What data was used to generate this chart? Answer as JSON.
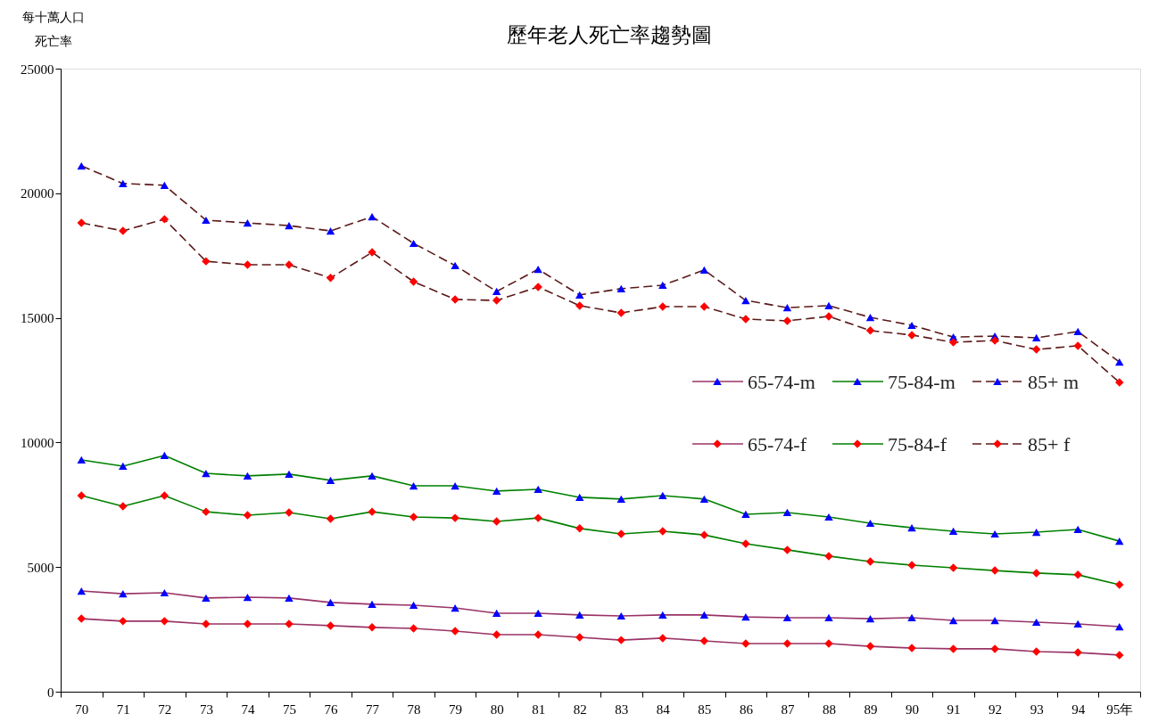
{
  "chart_data": {
    "type": "line",
    "title": "歷年老人死亡率趨勢圖",
    "ylabel": "每十萬人口",
    "annotations": [
      "死亡率"
    ],
    "categories": [
      "70",
      "71",
      "72",
      "73",
      "74",
      "75",
      "76",
      "77",
      "78",
      "79",
      "80",
      "81",
      "82",
      "83",
      "84",
      "85",
      "86",
      "87",
      "88",
      "89",
      "90",
      "91",
      "92",
      "93",
      "94",
      "95年"
    ],
    "ylim": [
      0,
      25000
    ],
    "yticks": [
      0,
      5000,
      10000,
      15000,
      20000,
      25000
    ],
    "grid": false,
    "legend": "right",
    "series": [
      {
        "name": "65-74-m",
        "color": "#993366",
        "marker": "triangle",
        "line_style": "solid",
        "values": [
          4040,
          3930,
          3970,
          3760,
          3790,
          3760,
          3580,
          3510,
          3470,
          3360,
          3150,
          3150,
          3080,
          3040,
          3080,
          3080,
          3000,
          2970,
          2970,
          2930,
          2970,
          2860,
          2860,
          2790,
          2720,
          2610
        ]
      },
      {
        "name": "75-84-m",
        "color": "#008000",
        "marker": "triangle",
        "line_style": "solid",
        "values": [
          9300,
          9050,
          9480,
          8760,
          8660,
          8730,
          8480,
          8660,
          8260,
          8260,
          8050,
          8120,
          7800,
          7730,
          7870,
          7730,
          7120,
          7190,
          7010,
          6760,
          6580,
          6440,
          6330,
          6400,
          6510,
          6040
        ]
      },
      {
        "name": "85+ m",
        "color": "#5c1a1a",
        "marker": "triangle",
        "line_style": "dashed",
        "values": [
          21100,
          20390,
          20320,
          18920,
          18810,
          18700,
          18490,
          19060,
          17990,
          17100,
          16060,
          16950,
          15920,
          16170,
          16310,
          16920,
          15700,
          15410,
          15490,
          15020,
          14700,
          14230,
          14270,
          14200,
          14450,
          13230
        ]
      },
      {
        "name": "65-74-f",
        "color": "#993366",
        "marker": "diamond",
        "line_style": "solid",
        "values": [
          2930,
          2830,
          2830,
          2720,
          2720,
          2720,
          2650,
          2580,
          2540,
          2430,
          2290,
          2290,
          2180,
          2070,
          2150,
          2040,
          1930,
          1930,
          1930,
          1820,
          1750,
          1720,
          1720,
          1610,
          1570,
          1470
        ]
      },
      {
        "name": "75-84-f",
        "color": "#008000",
        "marker": "diamond",
        "line_style": "solid",
        "values": [
          7870,
          7440,
          7870,
          7220,
          7080,
          7190,
          6940,
          7220,
          7010,
          6970,
          6830,
          6970,
          6550,
          6330,
          6440,
          6290,
          5940,
          5690,
          5440,
          5220,
          5080,
          4970,
          4860,
          4760,
          4690,
          4290
        ]
      },
      {
        "name": "85+ f",
        "color": "#5c1a1a",
        "marker": "diamond",
        "line_style": "dashed",
        "values": [
          18810,
          18490,
          18960,
          17270,
          17130,
          17130,
          16600,
          17630,
          16450,
          15740,
          15700,
          16240,
          15490,
          15200,
          15450,
          15450,
          14950,
          14880,
          15060,
          14490,
          14310,
          14020,
          14090,
          13730,
          13880,
          12410
        ]
      }
    ]
  }
}
